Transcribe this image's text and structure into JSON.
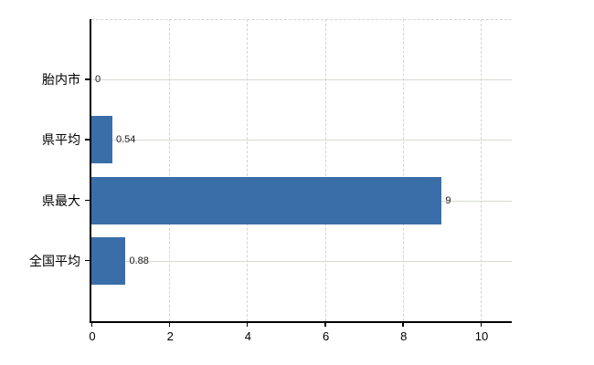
{
  "chart_data": {
    "type": "bar",
    "orientation": "horizontal",
    "title": "",
    "categories": [
      "胎内市",
      "県平均",
      "県最大",
      "全国平均"
    ],
    "values": [
      0,
      0.54,
      9,
      0.88
    ],
    "value_labels": [
      "0",
      "0.54",
      "9",
      "0.88"
    ],
    "x_tick_labels": [
      "0",
      "2",
      "4",
      "6",
      "8",
      "10"
    ],
    "x_tick_values": [
      0,
      2,
      4,
      6,
      8,
      10
    ],
    "xlim": [
      0,
      10.8
    ],
    "legend": "none",
    "grid": {
      "vertical": "dashed",
      "horizontal": "solid",
      "top_border": "dashed"
    },
    "colors": {
      "bar": "#3a6ea8",
      "grid_vertical": "#d7d3d7",
      "grid_horizontal": "#d6dcd2",
      "axis": "#000000",
      "text": "#000000",
      "background": "#ffffff"
    }
  }
}
